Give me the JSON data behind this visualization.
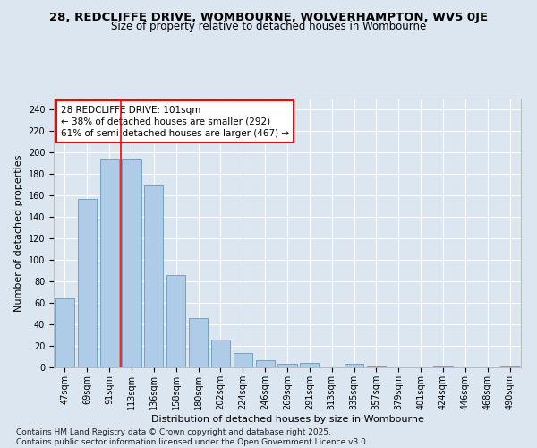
{
  "title": "28, REDCLIFFE DRIVE, WOMBOURNE, WOLVERHAMPTON, WV5 0JE",
  "subtitle": "Size of property relative to detached houses in Wombourne",
  "xlabel": "Distribution of detached houses by size in Wombourne",
  "ylabel": "Number of detached properties",
  "categories": [
    "47sqm",
    "69sqm",
    "91sqm",
    "113sqm",
    "136sqm",
    "158sqm",
    "180sqm",
    "202sqm",
    "224sqm",
    "246sqm",
    "269sqm",
    "291sqm",
    "313sqm",
    "335sqm",
    "357sqm",
    "379sqm",
    "401sqm",
    "424sqm",
    "446sqm",
    "468sqm",
    "490sqm"
  ],
  "values": [
    64,
    157,
    193,
    193,
    169,
    86,
    46,
    26,
    13,
    7,
    3,
    4,
    0,
    3,
    1,
    0,
    0,
    1,
    0,
    0,
    1
  ],
  "bar_color": "#aecce8",
  "bar_edge_color": "#6699bb",
  "red_line_x": 2.5,
  "annotation_line1": "28 REDCLIFFE DRIVE: 101sqm",
  "annotation_line2": "← 38% of detached houses are smaller (292)",
  "annotation_line3": "61% of semi-detached houses are larger (467) →",
  "ylim": [
    0,
    250
  ],
  "yticks": [
    0,
    20,
    40,
    60,
    80,
    100,
    120,
    140,
    160,
    180,
    200,
    220,
    240
  ],
  "background_color": "#dce6f0",
  "plot_bg_color": "#dce6f0",
  "grid_color": "#ffffff",
  "footer_line1": "Contains HM Land Registry data © Crown copyright and database right 2025.",
  "footer_line2": "Contains public sector information licensed under the Open Government Licence v3.0.",
  "title_fontsize": 9.5,
  "subtitle_fontsize": 8.5,
  "axis_label_fontsize": 8,
  "tick_fontsize": 7,
  "annotation_fontsize": 7.5,
  "footer_fontsize": 6.5
}
